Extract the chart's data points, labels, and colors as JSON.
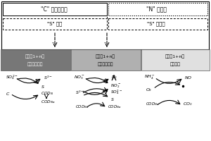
{
  "fig_w": 3.0,
  "fig_h": 2.0,
  "dpi": 100,
  "white": "#ffffff",
  "dark_gray": "#777777",
  "mid_gray": "#b0b0b0",
  "light_gray": "#e0e0e0",
  "box_top_label1": "\"C\" 碳梯度转化",
  "box_top_label2": "\"N\" 氮循环",
  "box_mid_label1": "\"S\" 代谢",
  "box_mid_label2": "\"S\" 硫循环",
  "zone1_line1": "梯度（1+n）",
  "zone1_line2": "严格厌氧反应",
  "zone2_line1": "梯度（1+n）",
  "zone2_line2": "兼性厌氧反应",
  "zone3_line1": "梯度（1+n）",
  "zone3_line2": "好氧反应"
}
